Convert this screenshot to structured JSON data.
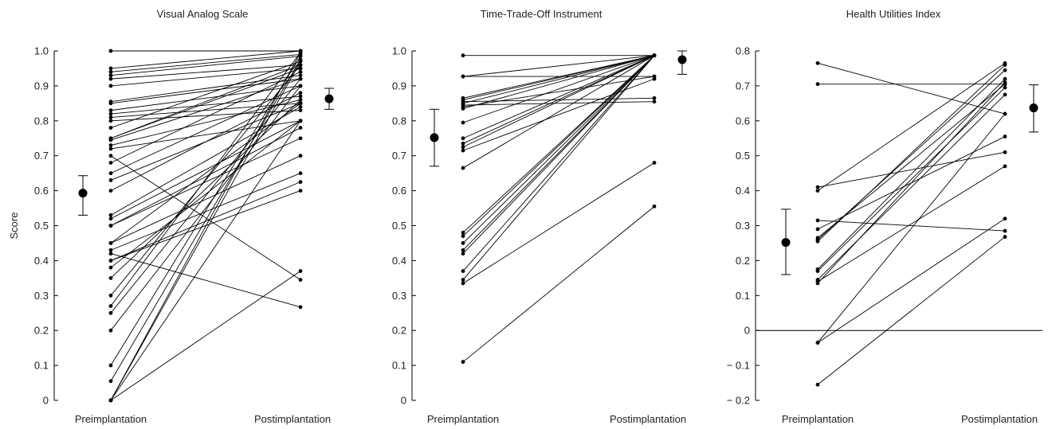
{
  "chart_data": [
    {
      "type": "line",
      "title": "Visual Analog Scale",
      "ylabel": "Score",
      "ylim": [
        0,
        1.0
      ],
      "yticks": [
        0,
        0.1,
        0.2,
        0.3,
        0.4,
        0.5,
        0.6,
        0.7,
        0.8,
        0.9,
        1.0
      ],
      "ytick_labels": [
        "0",
        "0.1",
        "0.2",
        "0.3",
        "0.4",
        "0.5",
        "0.6",
        "0.7",
        "0.8",
        "0.9",
        "1.0"
      ],
      "categories": [
        "Preimplantation",
        "Postimplantation"
      ],
      "mean_pre": {
        "value": 0.593,
        "low": 0.53,
        "high": 0.643
      },
      "mean_post": {
        "value": 0.863,
        "low": 0.833,
        "high": 0.893
      },
      "pairs": [
        [
          1.0,
          1.0
        ],
        [
          0.95,
          1.0
        ],
        [
          0.94,
          0.99
        ],
        [
          0.93,
          0.985
        ],
        [
          0.92,
          0.96
        ],
        [
          0.9,
          0.95
        ],
        [
          0.855,
          0.93
        ],
        [
          0.85,
          0.92
        ],
        [
          0.83,
          0.9
        ],
        [
          0.82,
          0.87
        ],
        [
          0.81,
          0.85
        ],
        [
          0.8,
          0.83
        ],
        [
          0.78,
          0.97
        ],
        [
          0.75,
          0.96
        ],
        [
          0.75,
          0.95
        ],
        [
          0.745,
          0.92
        ],
        [
          0.73,
          0.86
        ],
        [
          0.72,
          0.8
        ],
        [
          0.7,
          0.345
        ],
        [
          0.68,
          0.94
        ],
        [
          0.65,
          0.9
        ],
        [
          0.63,
          0.85
        ],
        [
          0.6,
          0.88
        ],
        [
          0.53,
          0.84
        ],
        [
          0.52,
          0.8
        ],
        [
          0.5,
          0.78
        ],
        [
          0.5,
          0.75
        ],
        [
          0.45,
          0.85
        ],
        [
          0.45,
          0.7
        ],
        [
          0.43,
          0.65
        ],
        [
          0.42,
          0.267
        ],
        [
          0.4,
          0.625
        ],
        [
          0.4,
          0.6
        ],
        [
          0.38,
          0.8
        ],
        [
          0.35,
          0.86
        ],
        [
          0.3,
          0.96
        ],
        [
          0.27,
          0.995
        ],
        [
          0.25,
          0.92
        ],
        [
          0.2,
          0.9
        ],
        [
          0.1,
          0.985
        ],
        [
          0.055,
          0.975
        ],
        [
          0.0,
          0.995
        ],
        [
          0.0,
          0.97
        ],
        [
          0.0,
          0.8
        ],
        [
          0.0,
          0.37
        ]
      ]
    },
    {
      "type": "line",
      "title": "Time-Trade-Off Instrument",
      "ylabel": "",
      "ylim": [
        0,
        1.0
      ],
      "yticks": [
        0,
        0.1,
        0.2,
        0.3,
        0.4,
        0.5,
        0.6,
        0.7,
        0.8,
        0.9,
        1.0
      ],
      "ytick_labels": [
        "0",
        "0.1",
        "0.2",
        "0.3",
        "0.4",
        "0.5",
        "0.6",
        "0.7",
        "0.8",
        "0.9",
        "1.0"
      ],
      "categories": [
        "Preimplantation",
        "Postimplantation"
      ],
      "mean_pre": {
        "value": 0.752,
        "low": 0.67,
        "high": 0.833
      },
      "mean_post": {
        "value": 0.975,
        "low": 0.933,
        "high": 1.0
      },
      "pairs": [
        [
          0.987,
          0.987
        ],
        [
          0.927,
          0.987
        ],
        [
          0.927,
          0.927
        ],
        [
          0.865,
          0.987
        ],
        [
          0.86,
          0.987
        ],
        [
          0.855,
          0.865
        ],
        [
          0.85,
          0.987
        ],
        [
          0.845,
          0.855
        ],
        [
          0.84,
          0.927
        ],
        [
          0.835,
          0.987
        ],
        [
          0.795,
          0.987
        ],
        [
          0.75,
          0.987
        ],
        [
          0.735,
          0.987
        ],
        [
          0.725,
          0.987
        ],
        [
          0.715,
          0.92
        ],
        [
          0.665,
          0.987
        ],
        [
          0.48,
          0.987
        ],
        [
          0.47,
          0.987
        ],
        [
          0.45,
          0.987
        ],
        [
          0.43,
          0.987
        ],
        [
          0.42,
          0.987
        ],
        [
          0.37,
          0.987
        ],
        [
          0.345,
          0.987
        ],
        [
          0.335,
          0.68
        ],
        [
          0.11,
          0.555
        ]
      ]
    },
    {
      "type": "line",
      "title": "Health Utilities Index",
      "ylabel": "",
      "ylim": [
        -0.2,
        0.8
      ],
      "yticks": [
        -0.2,
        -0.1,
        0,
        0.1,
        0.2,
        0.3,
        0.4,
        0.5,
        0.6,
        0.7,
        0.8
      ],
      "ytick_labels": [
        "− 0.2",
        "− 0.1",
        "0",
        "0.1",
        "0.2",
        "0.3",
        "0.4",
        "0.5",
        "0.6",
        "0.7",
        "0.8"
      ],
      "categories": [
        "Preimplantation",
        "Postimplantation"
      ],
      "zero_line": true,
      "mean_pre": {
        "value": 0.252,
        "low": 0.16,
        "high": 0.347
      },
      "mean_post": {
        "value": 0.637,
        "low": 0.568,
        "high": 0.703
      },
      "pairs": [
        [
          0.765,
          0.62
        ],
        [
          0.705,
          0.705
        ],
        [
          0.41,
          0.51
        ],
        [
          0.4,
          0.765
        ],
        [
          0.315,
          0.285
        ],
        [
          0.29,
          0.555
        ],
        [
          0.265,
          0.705
        ],
        [
          0.26,
          0.745
        ],
        [
          0.255,
          0.76
        ],
        [
          0.175,
          0.72
        ],
        [
          0.17,
          0.695
        ],
        [
          0.145,
          0.675
        ],
        [
          0.14,
          0.47
        ],
        [
          0.135,
          0.71
        ],
        [
          -0.035,
          0.62
        ],
        [
          -0.035,
          0.32
        ],
        [
          -0.155,
          0.268
        ]
      ]
    }
  ]
}
